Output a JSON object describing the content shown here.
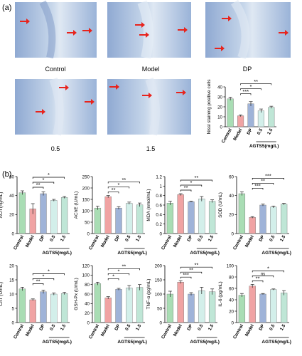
{
  "panel_labels": {
    "a": "(a)",
    "b": "(b)"
  },
  "micrographs": [
    {
      "caption": "Control"
    },
    {
      "caption": "Model"
    },
    {
      "caption": "DP"
    },
    {
      "caption": "0.5"
    },
    {
      "caption": "1.5"
    }
  ],
  "colors": {
    "control": "#a9ddb4",
    "model": "#f0a3a3",
    "dp": "#9fb3d8",
    "low": "#d3efea",
    "high": "#bfe6d6",
    "arrow": "#e8231c",
    "tissue": "#b9cde6"
  },
  "chart_data": [
    {
      "id": "nissl",
      "type": "bar",
      "categories": [
        "Control",
        "Model",
        "DP",
        "0.5",
        "1.5"
      ],
      "values": [
        28,
        11,
        23,
        16,
        19.5
      ],
      "errors": [
        1.6,
        0.8,
        2.2,
        1.8,
        1.1
      ],
      "ylabel": "Nissl staining positive cells",
      "ylim": [
        0,
        40
      ],
      "yticks": [
        0,
        10,
        20,
        30,
        40
      ],
      "group_label": "AGTS5(mg/L)",
      "sig": [
        {
          "a": 1,
          "b": 2,
          "t": "***"
        },
        {
          "a": 1,
          "b": 3,
          "t": "*"
        },
        {
          "a": 1,
          "b": 4,
          "t": "**"
        }
      ]
    },
    {
      "id": "ach",
      "type": "bar",
      "categories": [
        "Control",
        "Model",
        "DP",
        "0.5",
        "1.5"
      ],
      "values": [
        43,
        26,
        42,
        35,
        38
      ],
      "errors": [
        2,
        5.5,
        2,
        1,
        1
      ],
      "ylabel": "ACh (ng/mL)",
      "ylim": [
        0,
        60
      ],
      "yticks": [
        0,
        20,
        40,
        60
      ],
      "group_label": "AGTS5(mg/L)",
      "sig": [
        {
          "a": 1,
          "b": 2,
          "t": "**"
        },
        {
          "a": 1,
          "b": 3,
          "t": "*"
        },
        {
          "a": 1,
          "b": 4,
          "t": "*"
        }
      ]
    },
    {
      "id": "ache",
      "type": "bar",
      "categories": [
        "Control",
        "Model",
        "DP",
        "0.5",
        "1.5"
      ],
      "values": [
        112,
        162,
        112,
        133,
        126
      ],
      "errors": [
        8,
        5,
        6,
        5,
        8
      ],
      "ylabel": "AChE (U/mL)",
      "ylim": [
        0,
        250
      ],
      "yticks": [
        0,
        50,
        100,
        150,
        200,
        250
      ],
      "group_label": "AGTS5(mg/L)",
      "sig": [
        {
          "a": 1,
          "b": 2,
          "t": "**"
        },
        {
          "a": 1,
          "b": 3,
          "t": "*"
        },
        {
          "a": 1,
          "b": 4,
          "t": "**"
        }
      ]
    },
    {
      "id": "mda",
      "type": "bar",
      "categories": [
        "Control",
        "Model",
        "DP",
        "0.5",
        "1.5"
      ],
      "values": [
        0.64,
        0.82,
        0.67,
        0.73,
        0.68
      ],
      "errors": [
        0.04,
        0.02,
        0.01,
        0.05,
        0.03
      ],
      "ylabel": "MDA (nmol/mL)",
      "ylim": [
        0,
        1.2
      ],
      "yticks": [
        0,
        0.2,
        0.4,
        0.6,
        0.8,
        1.0,
        1.2
      ],
      "group_label": "AGTS5(mg/L)",
      "sig": [
        {
          "a": 1,
          "b": 2,
          "t": "**"
        },
        {
          "a": 1,
          "b": 3,
          "t": "*"
        },
        {
          "a": 1,
          "b": 4,
          "t": "**"
        }
      ]
    },
    {
      "id": "sod",
      "type": "bar",
      "categories": [
        "Control",
        "Model",
        "DP",
        "0.5",
        "1.5"
      ],
      "values": [
        42,
        17,
        30,
        28,
        31
      ],
      "errors": [
        2,
        0.8,
        1,
        1,
        0.8
      ],
      "ylabel": "SOD (U/mL)",
      "ylim": [
        0,
        60
      ],
      "yticks": [
        0,
        20,
        40,
        60
      ],
      "group_label": "AGTS5(mg/L)",
      "sig": [
        {
          "a": 1,
          "b": 2,
          "t": "***"
        },
        {
          "a": 1,
          "b": 3,
          "t": "**"
        },
        {
          "a": 1,
          "b": 4,
          "t": "***"
        }
      ]
    },
    {
      "id": "cat",
      "type": "bar",
      "categories": [
        "Control",
        "Model",
        "DP",
        "0.5",
        "1.5"
      ],
      "values": [
        11.8,
        8,
        10.8,
        10,
        10.2
      ],
      "errors": [
        0.6,
        0.3,
        0.6,
        0.4,
        0.4
      ],
      "ylabel": "CAT (U/mL)",
      "ylim": [
        0,
        20
      ],
      "yticks": [
        0,
        5,
        10,
        15,
        20
      ],
      "group_label": "AGTS5(mg/L)",
      "sig": [
        {
          "a": 1,
          "b": 2,
          "t": "**"
        },
        {
          "a": 1,
          "b": 3,
          "t": "*"
        },
        {
          "a": 1,
          "b": 4,
          "t": "*"
        }
      ]
    },
    {
      "id": "gshpx",
      "type": "bar",
      "categories": [
        "Control",
        "Model",
        "DP",
        "0.5",
        "1.5"
      ],
      "values": [
        82,
        52,
        70,
        73,
        74
      ],
      "errors": [
        3,
        2.5,
        2,
        5,
        6
      ],
      "ylabel": "GSH-Px (U/mL)",
      "ylim": [
        0,
        120
      ],
      "yticks": [
        0,
        20,
        40,
        60,
        80,
        100,
        120
      ],
      "group_label": "AGTS5(mg/L)",
      "sig": [
        {
          "a": 1,
          "b": 2,
          "t": "*"
        },
        {
          "a": 1,
          "b": 3,
          "t": "*"
        },
        {
          "a": 1,
          "b": 4,
          "t": "**"
        }
      ]
    },
    {
      "id": "tnfa",
      "type": "bar",
      "categories": [
        "Control",
        "Model",
        "DP",
        "0.5",
        "1.5"
      ],
      "values": [
        100,
        142,
        100,
        112,
        108
      ],
      "errors": [
        10,
        5,
        5,
        12,
        10
      ],
      "ylabel": "TNF-α (pg/mL)",
      "ylim": [
        0,
        200
      ],
      "yticks": [
        0,
        50,
        100,
        150,
        200
      ],
      "group_label": "AGTS5(mg/L)",
      "sig": [
        {
          "a": 1,
          "b": 2,
          "t": "***"
        },
        {
          "a": 1,
          "b": 3,
          "t": "**"
        },
        {
          "a": 1,
          "b": 4,
          "t": "**"
        }
      ]
    },
    {
      "id": "il6",
      "type": "bar",
      "categories": [
        "Control",
        "Model",
        "DP",
        "0.5",
        "1.5"
      ],
      "values": [
        48,
        64,
        50,
        58,
        52
      ],
      "errors": [
        3,
        3,
        1,
        1,
        4
      ],
      "ylabel": "IL-6 (pg/mL)",
      "ylim": [
        0,
        100
      ],
      "yticks": [
        0,
        20,
        40,
        60,
        80,
        100
      ],
      "group_label": "AGTS5(mg/L)",
      "sig": [
        {
          "a": 1,
          "b": 2,
          "t": "**"
        },
        {
          "a": 1,
          "b": 3,
          "t": "ns"
        },
        {
          "a": 1,
          "b": 4,
          "t": "*"
        }
      ]
    }
  ]
}
